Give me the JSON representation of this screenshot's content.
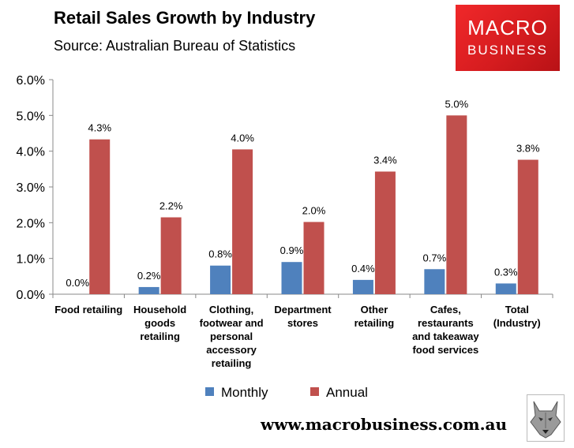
{
  "header": {
    "title": "Retail Sales Growth by Industry",
    "subtitle": "Source: Australian Bureau of Statistics"
  },
  "logo": {
    "line1": "MACRO",
    "line2": "BUSINESS"
  },
  "footer": {
    "url": "www.macrobusiness.com.au"
  },
  "colors": {
    "monthly": "#4f81bd",
    "annual": "#c0504d",
    "logo": "#e02226"
  },
  "chart_data": {
    "type": "bar",
    "title": "Retail Sales Growth by Industry",
    "subtitle": "Source: Australian Bureau of Statistics",
    "categories": [
      [
        "Food retailing"
      ],
      [
        "Household",
        "goods",
        "retailing"
      ],
      [
        "Clothing,",
        "footwear and",
        "personal",
        "accessory",
        "retailing"
      ],
      [
        "Department",
        "stores"
      ],
      [
        "Other",
        "retailing"
      ],
      [
        "Cafes,",
        "restaurants",
        "and takeaway",
        "food services"
      ],
      [
        "Total",
        "(Industry)"
      ]
    ],
    "series": [
      {
        "name": "Monthly",
        "color": "#4f81bd",
        "values": [
          0.0,
          0.2,
          0.8,
          0.9,
          0.4,
          0.7,
          0.3
        ],
        "labels": [
          "0.0%",
          "0.2%",
          "0.8%",
          "0.9%",
          "0.4%",
          "0.7%",
          "0.3%"
        ]
      },
      {
        "name": "Annual",
        "color": "#c0504d",
        "values": [
          4.33,
          2.15,
          4.05,
          2.02,
          3.43,
          5.0,
          3.76
        ],
        "labels": [
          "4.3%",
          "2.2%",
          "4.0%",
          "2.0%",
          "3.4%",
          "5.0%",
          "3.8%"
        ]
      }
    ],
    "ylim": [
      0,
      6
    ],
    "yticks": [
      "0.0%",
      "1.0%",
      "2.0%",
      "3.0%",
      "4.0%",
      "5.0%",
      "6.0%"
    ],
    "grid": false,
    "legend_position": "bottom"
  }
}
